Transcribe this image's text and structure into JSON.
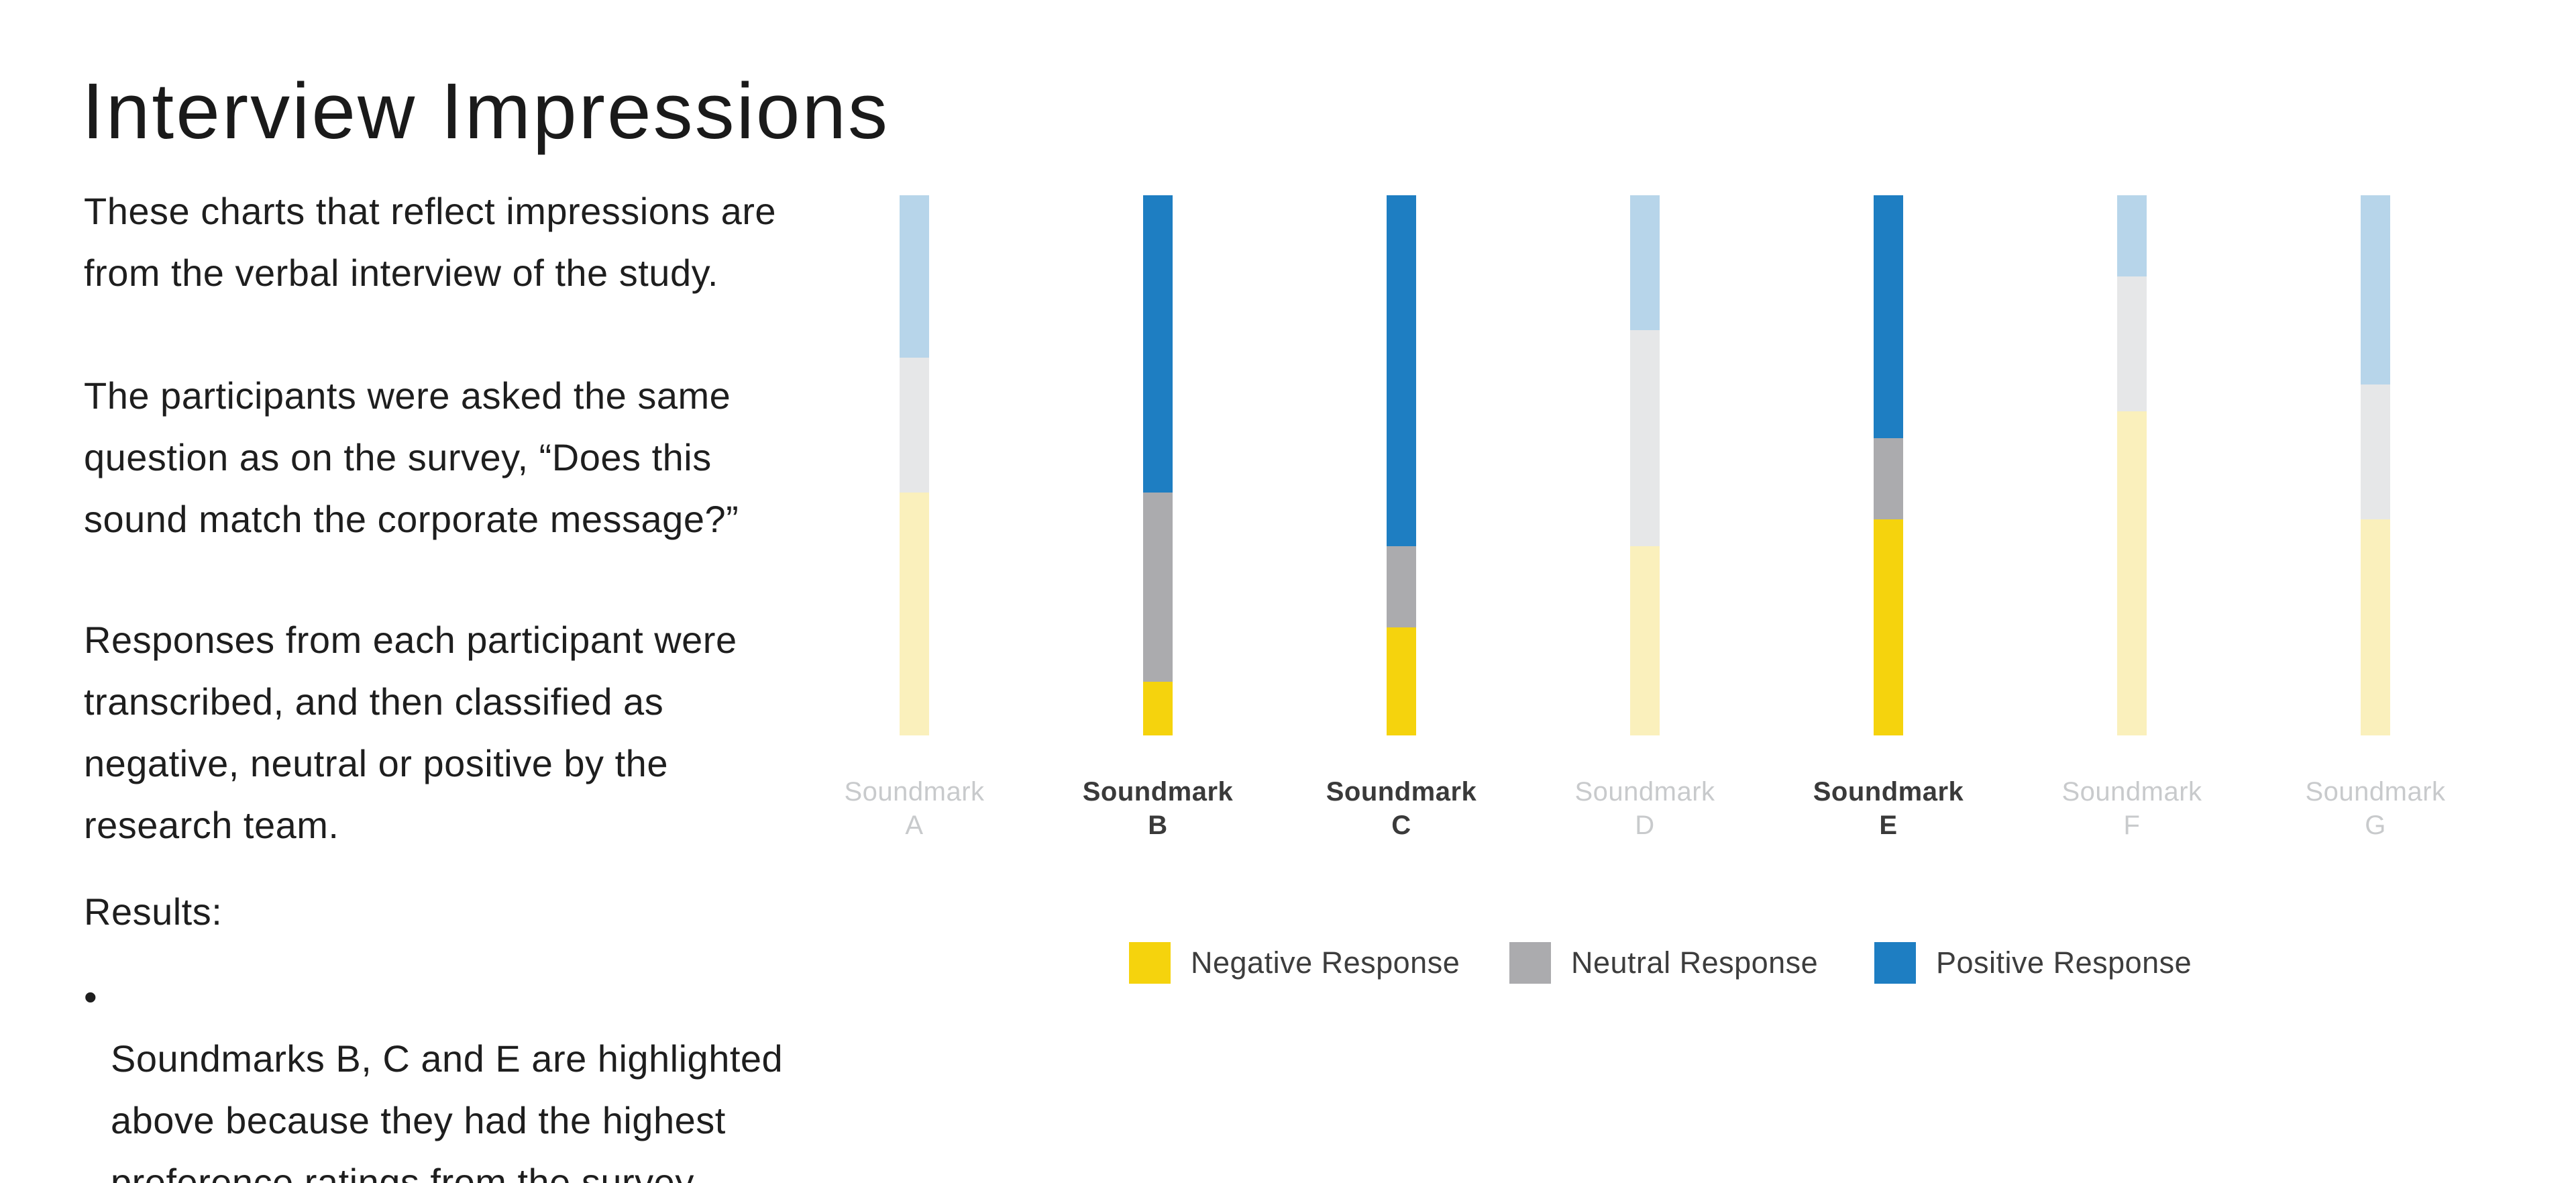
{
  "header": {
    "title": "Interview Impressions"
  },
  "body": {
    "paragraphs": [
      "These charts that reflect impressions are\nfrom the verbal interview of the study.",
      "The participants were asked the same\nquestion as on the survey, “Does this\nsound match the corporate message?”",
      "Responses from each participant were\ntranscribed, and then classified as\nnegative, neutral or positive by the\nresearch team."
    ],
    "results_label": "Results:",
    "bullet_marker": "•",
    "bullets": [
      "Soundmarks B, C and E are highlighted\nabove because they had the highest\npreference ratings from the survey."
    ]
  },
  "chart_data": {
    "type": "bar",
    "variant": "stacked-percentage",
    "orientation": "vertical",
    "title": "",
    "xlabel": "",
    "ylabel": "",
    "ylim": [
      0,
      100
    ],
    "axes_visible": false,
    "grid": false,
    "legend_position": "bottom",
    "categories": [
      {
        "word": "Soundmark",
        "letter": "A",
        "label": "Soundmark\nA",
        "highlighted": false
      },
      {
        "word": "Soundmark",
        "letter": "B",
        "label": "Soundmark\nB",
        "highlighted": true
      },
      {
        "word": "Soundmark",
        "letter": "C",
        "label": "Soundmark\nC",
        "highlighted": true
      },
      {
        "word": "Soundmark",
        "letter": "D",
        "label": "Soundmark\nD",
        "highlighted": false
      },
      {
        "word": "Soundmark",
        "letter": "E",
        "label": "Soundmark\nE",
        "highlighted": true
      },
      {
        "word": "Soundmark",
        "letter": "F",
        "label": "Soundmark\nF",
        "highlighted": false
      },
      {
        "word": "Soundmark",
        "letter": "G",
        "label": "Soundmark\nG",
        "highlighted": false
      }
    ],
    "stack_order_top_to_bottom": [
      "Positive Response",
      "Neutral Response",
      "Negative Response"
    ],
    "series": [
      {
        "name": "Positive Response",
        "color": "#1E7EC2",
        "muted_color": "#B7D5EA",
        "values": [
          30,
          55,
          65,
          25,
          45,
          15,
          35
        ]
      },
      {
        "name": "Neutral Response",
        "color": "#ABABAE",
        "muted_color": "#E6E7E8",
        "values": [
          25,
          35,
          15,
          40,
          15,
          25,
          25
        ]
      },
      {
        "name": "Negative Response",
        "color": "#F5D30D",
        "muted_color": "#FAF0BC",
        "values": [
          45,
          10,
          20,
          35,
          40,
          60,
          40
        ]
      }
    ],
    "highlighted_categories": [
      "B",
      "C",
      "E"
    ]
  },
  "legend": {
    "items": [
      {
        "label": "Negative Response",
        "color": "#F5D30D"
      },
      {
        "label": "Neutral Response",
        "color": "#ABABAE"
      },
      {
        "label": "Positive Response",
        "color": "#1E7EC2"
      }
    ]
  }
}
